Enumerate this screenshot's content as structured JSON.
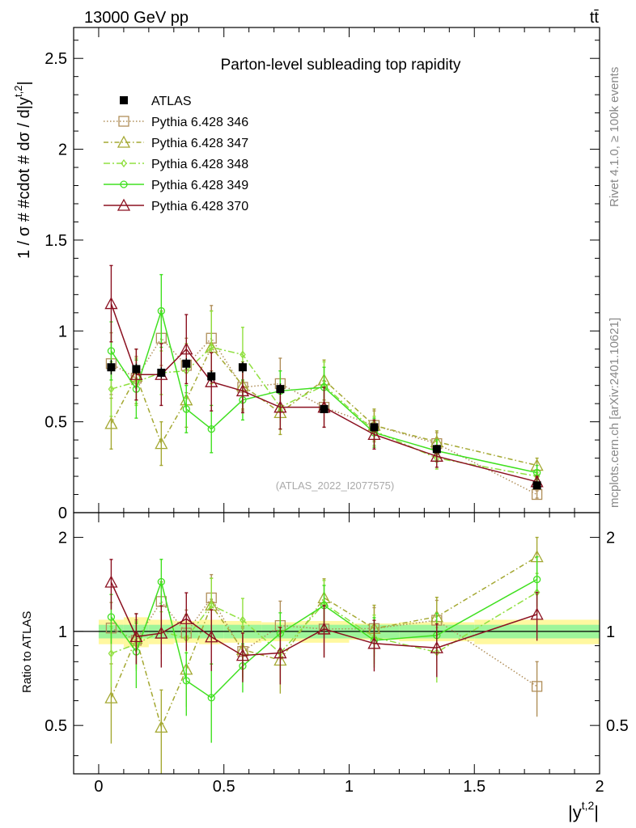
{
  "header": {
    "left": "13000 GeV pp",
    "right": "tt̄"
  },
  "side_labels": {
    "rivet": "Rivet 4.1.0, ≥ 100k events",
    "mcplots": "mcplots.cern.ch [arXiv:2401.10621]"
  },
  "chart_data": {
    "type": "scatter",
    "title": "Parton-level subleading top rapidity",
    "watermark": "(ATLAS_2022_I2077575)",
    "xlabel": "|y",
    "xlabel_sup": "t,2",
    "xlabel_close": "|",
    "ylabel": "1 / σ # #cdot # dσ / d|y",
    "ylabel_sup": "t,2",
    "ylabel_close": "|",
    "ratio_ylabel": "Ratio to ATLAS",
    "xlim": [
      -0.1,
      2.0
    ],
    "ylim": [
      0,
      2.67
    ],
    "ratio_ylim": [
      0.35,
      2.4
    ],
    "xticks": [
      0,
      0.5,
      1,
      1.5,
      2
    ],
    "xtick_labels": [
      "0",
      "0.5",
      "1",
      "1.5",
      "2"
    ],
    "yticks": [
      0,
      0.5,
      1,
      1.5,
      2,
      2.5
    ],
    "ytick_labels": [
      "0",
      "0.5",
      "1",
      "1.5",
      "2",
      "2.5"
    ],
    "ratio_yticks": [
      0.5,
      1,
      2
    ],
    "ratio_ytick_labels": [
      "0.5",
      "1",
      "2"
    ],
    "x": [
      0.05,
      0.15,
      0.25,
      0.35,
      0.45,
      0.575,
      0.725,
      0.9,
      1.1,
      1.35,
      1.75
    ],
    "bins": [
      [
        0,
        0.1
      ],
      [
        0.1,
        0.2
      ],
      [
        0.2,
        0.3
      ],
      [
        0.3,
        0.4
      ],
      [
        0.4,
        0.5
      ],
      [
        0.5,
        0.65
      ],
      [
        0.65,
        0.8
      ],
      [
        0.8,
        1.0
      ],
      [
        1.0,
        1.2
      ],
      [
        1.2,
        1.5
      ],
      [
        1.5,
        2.0
      ]
    ],
    "legend_position": "top-left",
    "data": {
      "name": "ATLAS",
      "values": [
        0.8,
        0.79,
        0.77,
        0.82,
        0.75,
        0.8,
        0.68,
        0.57,
        0.47,
        0.35,
        0.15
      ],
      "errors": [
        0.04,
        0.03,
        0.03,
        0.03,
        0.03,
        0.03,
        0.03,
        0.02,
        0.02,
        0.02,
        0.01
      ],
      "band_inner": [
        0.05,
        0.05,
        0.05,
        0.05,
        0.05,
        0.05,
        0.05,
        0.05,
        0.05,
        0.05,
        0.05
      ],
      "band_outer": [
        0.09,
        0.11,
        0.09,
        0.08,
        0.09,
        0.08,
        0.07,
        0.08,
        0.06,
        0.07,
        0.09
      ]
    },
    "series": [
      {
        "name": "Pythia 6.428 346",
        "color": "#b08f5a",
        "dash": "1.5,2.5",
        "marker": "square",
        "values": [
          0.82,
          0.74,
          0.96,
          0.81,
          0.96,
          0.69,
          0.71,
          0.58,
          0.48,
          0.38,
          0.1
        ],
        "errors": [
          0.17,
          0.12,
          0.15,
          0.15,
          0.18,
          0.13,
          0.14,
          0.11,
          0.08,
          0.06,
          0.02
        ]
      },
      {
        "name": "Pythia 6.428 347",
        "color": "#a4a832",
        "dash": "6,3,1.5,3",
        "marker": "triangle",
        "values": [
          0.49,
          0.75,
          0.38,
          0.62,
          0.91,
          0.7,
          0.55,
          0.73,
          0.48,
          0.39,
          0.26
        ],
        "errors": [
          0.14,
          0.15,
          0.12,
          0.15,
          0.2,
          0.13,
          0.12,
          0.11,
          0.09,
          0.06,
          0.04
        ]
      },
      {
        "name": "Pythia 6.428 348",
        "color": "#90e040",
        "dash": "8,3,2,3",
        "marker": "diamond",
        "values": [
          0.68,
          0.72,
          0.77,
          0.78,
          0.91,
          0.87,
          0.58,
          0.7,
          0.45,
          0.3,
          0.2
        ],
        "errors": [
          0.15,
          0.13,
          0.12,
          0.15,
          0.2,
          0.15,
          0.12,
          0.13,
          0.08,
          0.06,
          0.03
        ]
      },
      {
        "name": "Pythia 6.428 349",
        "color": "#40e020",
        "dash": "none",
        "marker": "circle",
        "values": [
          0.89,
          0.68,
          1.11,
          0.57,
          0.46,
          0.62,
          0.67,
          0.69,
          0.44,
          0.34,
          0.22
        ],
        "errors": [
          0.16,
          0.16,
          0.2,
          0.13,
          0.13,
          0.11,
          0.11,
          0.11,
          0.08,
          0.06,
          0.04
        ]
      },
      {
        "name": "Pythia 6.428 370",
        "color": "#8b1020",
        "dash": "none",
        "marker": "triangle",
        "values": [
          1.15,
          0.76,
          0.76,
          0.9,
          0.72,
          0.67,
          0.58,
          0.58,
          0.43,
          0.31,
          0.17
        ],
        "errors": [
          0.21,
          0.14,
          0.17,
          0.19,
          0.16,
          0.12,
          0.12,
          0.11,
          0.08,
          0.06,
          0.03
        ]
      }
    ]
  }
}
